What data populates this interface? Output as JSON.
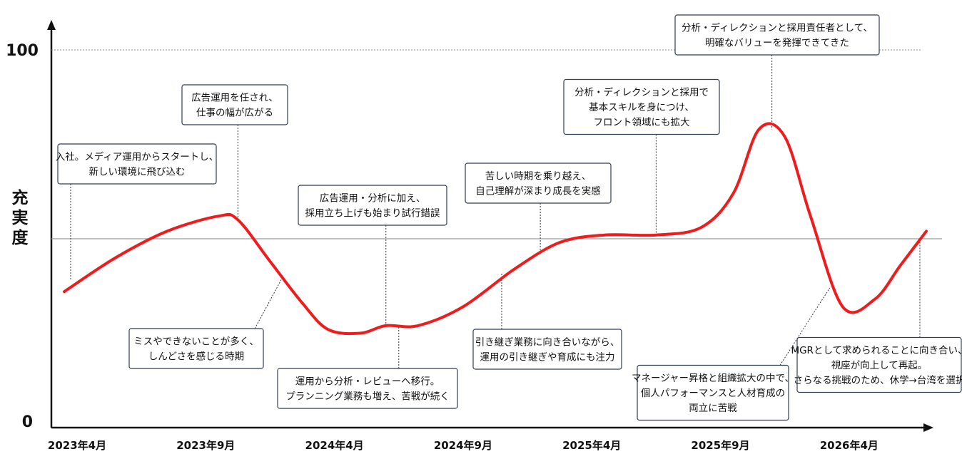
{
  "chart_data": {
    "type": "line",
    "title": "",
    "xlabel": "",
    "ylabel": "充実度",
    "ylim": [
      0,
      100
    ],
    "y_ticks": [
      "0",
      "100"
    ],
    "midline": 50,
    "x_ticks": [
      "2023年4月",
      "2023年9月",
      "2024年4月",
      "2024年9月",
      "2025年4月",
      "2025年9月",
      "2026年4月"
    ],
    "x_tick_positions": [
      0.1,
      1.1,
      2.1,
      3.1,
      4.1,
      5.1,
      6.1
    ],
    "xlim": [
      0,
      6.75
    ],
    "series": [
      {
        "color": "#ee1c1c",
        "points": [
          [
            0.0,
            36
          ],
          [
            0.4,
            45
          ],
          [
            0.8,
            52
          ],
          [
            1.2,
            56
          ],
          [
            1.35,
            55
          ],
          [
            1.6,
            44
          ],
          [
            1.85,
            33
          ],
          [
            2.05,
            26
          ],
          [
            2.3,
            25
          ],
          [
            2.5,
            27
          ],
          [
            2.75,
            27
          ],
          [
            3.1,
            32
          ],
          [
            3.5,
            42
          ],
          [
            3.85,
            49
          ],
          [
            4.2,
            51
          ],
          [
            4.6,
            51
          ],
          [
            4.95,
            53
          ],
          [
            5.2,
            62
          ],
          [
            5.4,
            79
          ],
          [
            5.6,
            77
          ],
          [
            5.8,
            56
          ],
          [
            6.05,
            32
          ],
          [
            6.3,
            34
          ],
          [
            6.5,
            43
          ],
          [
            6.7,
            52
          ]
        ]
      }
    ],
    "annotations": [
      {
        "lines": [
          "入社。メディア運用からスタートし、",
          "新しい環境に飛び込む"
        ],
        "x": 0.05,
        "y": 39
      },
      {
        "lines": [
          "広告運用を任され、",
          "仕事の幅が広がる"
        ],
        "x": 1.35,
        "y": 55
      },
      {
        "lines": [
          "ミスやできないことが多く、",
          "しんどさを感じる時期"
        ],
        "x": 1.7,
        "y": 40
      },
      {
        "lines": [
          "広告運用・分析に加え、",
          "採用立ち上げも始まり試行錯誤"
        ],
        "x": 2.5,
        "y": 27
      },
      {
        "lines": [
          "運用から分析・レビューへ移行。",
          "プランニング業務も増え、苦戦が続く"
        ],
        "x": 2.6,
        "y": 27
      },
      {
        "lines": [
          "苦しい時期を乗り越え、",
          "自己理解が深まり成長を実感"
        ],
        "x": 3.7,
        "y": 47
      },
      {
        "lines": [
          "引き継ぎ業務に向き合いながら、",
          "運用の引き継ぎや育成にも注力"
        ],
        "x": 3.4,
        "y": 41
      },
      {
        "lines": [
          "分析・ディレクションと採用で",
          "基本スキルを身につけ、",
          "フロント領域にも拡大"
        ],
        "x": 4.6,
        "y": 51
      },
      {
        "lines": [
          "分析・ディレクションと採用責任者として、",
          "明確なバリューを発揮できてきた"
        ],
        "x": 5.5,
        "y": 79
      },
      {
        "lines": [
          "マネージャー昇格と組織拡大の中で、",
          "個人パフォーマンスと人材育成の",
          "両立に苦戦"
        ],
        "x": 5.95,
        "y": 37
      },
      {
        "lines": [
          "MGRとして求められることに向き合い、",
          "視座が向上して再起。",
          "さらなる挑戦のため、休学→台湾を選択"
        ],
        "x": 6.65,
        "y": 50
      }
    ],
    "grid": false,
    "legend": "none"
  }
}
